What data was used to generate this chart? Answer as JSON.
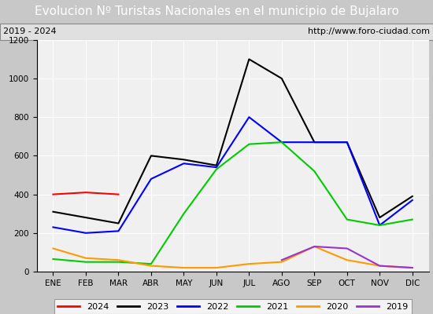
{
  "title": "Evolucion Nº Turistas Nacionales en el municipio de Bujalaro",
  "subtitle_left": "2019 - 2024",
  "subtitle_right": "http://www.foro-ciudad.com",
  "months": [
    "ENE",
    "FEB",
    "MAR",
    "ABR",
    "MAY",
    "JUN",
    "JUL",
    "AGO",
    "SEP",
    "OCT",
    "NOV",
    "DIC"
  ],
  "series": {
    "2024": {
      "values": [
        400,
        410,
        400,
        null,
        null,
        null,
        null,
        null,
        null,
        null,
        null,
        null
      ],
      "color": "#ff0000",
      "linewidth": 1.5
    },
    "2023": {
      "values": [
        310,
        280,
        250,
        600,
        580,
        550,
        1100,
        1000,
        670,
        670,
        280,
        390
      ],
      "color": "#000000",
      "linewidth": 1.5
    },
    "2022": {
      "values": [
        230,
        200,
        210,
        480,
        560,
        540,
        800,
        670,
        670,
        670,
        240,
        370
      ],
      "color": "#0000ff",
      "linewidth": 1.5
    },
    "2021": {
      "values": [
        65,
        50,
        50,
        40,
        300,
        530,
        660,
        670,
        520,
        270,
        240,
        270
      ],
      "color": "#00cc00",
      "linewidth": 1.5
    },
    "2020": {
      "values": [
        120,
        70,
        60,
        30,
        20,
        20,
        40,
        50,
        130,
        60,
        30,
        20
      ],
      "color": "#ff9900",
      "linewidth": 1.5
    },
    "2019": {
      "values": [
        null,
        null,
        null,
        null,
        null,
        null,
        null,
        60,
        130,
        120,
        30,
        20
      ],
      "color": "#9933cc",
      "linewidth": 1.5
    }
  },
  "ylim": [
    0,
    1200
  ],
  "yticks": [
    0,
    200,
    400,
    600,
    800,
    1000,
    1200
  ],
  "title_bg_color": "#4a90d9",
  "title_text_color": "#ffffff",
  "plot_bg_color": "#f0f0f0",
  "outer_bg_color": "#c8c8c8",
  "grid_color": "#ffffff",
  "subtitle_fontsize": 8,
  "title_fontsize": 11,
  "tick_fontsize": 7.5
}
